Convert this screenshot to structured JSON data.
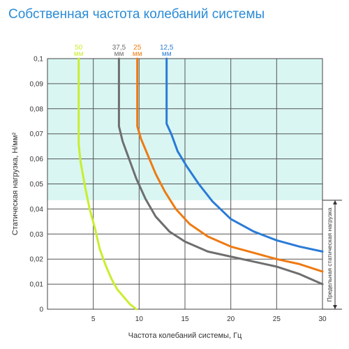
{
  "chart_data": {
    "type": "line",
    "title": "Собственная частота колебаний системы",
    "xlabel": "Частота колебаний системы, Гц",
    "ylabel": "Статическая нагрузка, Н/мм²",
    "xlim": [
      0,
      30
    ],
    "ylim": [
      0,
      0.1
    ],
    "x_ticks": [
      "5",
      "10",
      "15",
      "20",
      "25",
      "30"
    ],
    "y_ticks": [
      "0",
      "0,01",
      "0,02",
      "0,03",
      "0,04",
      "0,05",
      "0,06",
      "0,07",
      "0,08",
      "0,09",
      "0,1"
    ],
    "grid": true,
    "shaded_region": {
      "y_from": 0.0435,
      "y_to": 0.1,
      "color": "#d9f6f3"
    },
    "limit_annotation": {
      "label": "Предельная статическая нагрузка",
      "y_from": 0,
      "y_to": 0.0435
    },
    "series": [
      {
        "name": "50",
        "unit": "мм",
        "color": "#c8ee2f",
        "points": [
          [
            9.7,
            0.0
          ],
          [
            9.0,
            0.002
          ],
          [
            8.3,
            0.005
          ],
          [
            7.6,
            0.008
          ],
          [
            7.0,
            0.012
          ],
          [
            6.4,
            0.017
          ],
          [
            5.7,
            0.024
          ],
          [
            5.2,
            0.032
          ],
          [
            4.6,
            0.04
          ],
          [
            4.1,
            0.049
          ],
          [
            3.6,
            0.059
          ],
          [
            3.4,
            0.066
          ],
          [
            3.4,
            0.075
          ],
          [
            3.4,
            0.09
          ],
          [
            3.4,
            0.1
          ]
        ]
      },
      {
        "name": "37,5",
        "unit": "мм",
        "color": "#6e6e6e",
        "points": [
          [
            30,
            0.01
          ],
          [
            27.5,
            0.014
          ],
          [
            25,
            0.017
          ],
          [
            22.5,
            0.019
          ],
          [
            20,
            0.021
          ],
          [
            17.5,
            0.023
          ],
          [
            15,
            0.027
          ],
          [
            13.3,
            0.031
          ],
          [
            11.8,
            0.037
          ],
          [
            10.7,
            0.044
          ],
          [
            9.7,
            0.052
          ],
          [
            8.9,
            0.06
          ],
          [
            8.2,
            0.067
          ],
          [
            7.8,
            0.073
          ],
          [
            7.8,
            0.085
          ],
          [
            7.8,
            0.1
          ]
        ]
      },
      {
        "name": "25",
        "unit": "мм",
        "color": "#ee7a12",
        "points": [
          [
            30,
            0.015
          ],
          [
            27.5,
            0.018
          ],
          [
            25,
            0.02
          ],
          [
            22.5,
            0.0225
          ],
          [
            20,
            0.025
          ],
          [
            17.5,
            0.029
          ],
          [
            15.5,
            0.034
          ],
          [
            14,
            0.04
          ],
          [
            12.8,
            0.047
          ],
          [
            11.8,
            0.054
          ],
          [
            11,
            0.061
          ],
          [
            10.2,
            0.068
          ],
          [
            9.8,
            0.073
          ],
          [
            9.8,
            0.085
          ],
          [
            9.8,
            0.1
          ]
        ]
      },
      {
        "name": "12,5",
        "unit": "мм",
        "color": "#2a7bd6",
        "points": [
          [
            30,
            0.023
          ],
          [
            27.5,
            0.025
          ],
          [
            25,
            0.0275
          ],
          [
            22.5,
            0.031
          ],
          [
            20,
            0.036
          ],
          [
            18,
            0.043
          ],
          [
            16.5,
            0.05
          ],
          [
            15.2,
            0.057
          ],
          [
            14.2,
            0.063
          ],
          [
            13.5,
            0.07
          ],
          [
            13,
            0.074
          ],
          [
            13,
            0.085
          ],
          [
            13,
            0.1
          ]
        ]
      }
    ]
  }
}
